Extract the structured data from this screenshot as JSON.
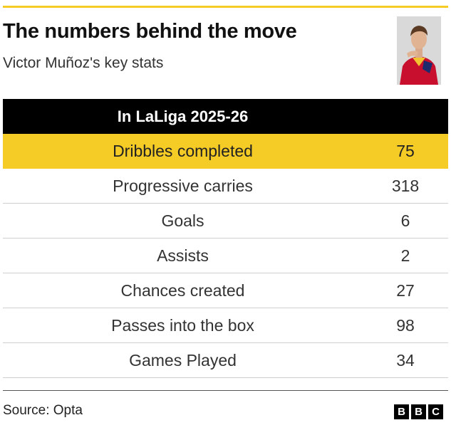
{
  "title": "The numbers behind the move",
  "subtitle": "Victor Muñoz's key stats",
  "table_header": "In LaLiga 2025-26",
  "source": "Source: Opta",
  "brand": {
    "letters": [
      "B",
      "B",
      "C"
    ]
  },
  "colors": {
    "accent": "#f5cb26",
    "header_bg": "#000000"
  },
  "chart_data": {
    "type": "table",
    "title": "The numbers behind the move",
    "subtitle": "Victor Muñoz's key stats",
    "header": "In LaLiga 2025-26",
    "highlighted_row": 0,
    "rows": [
      {
        "label": "Dribbles completed",
        "value": "75"
      },
      {
        "label": "Progressive carries",
        "value": "318"
      },
      {
        "label": "Goals",
        "value": "6"
      },
      {
        "label": "Assists",
        "value": "2"
      },
      {
        "label": "Chances created",
        "value": "27"
      },
      {
        "label": "Passes into the box",
        "value": "98"
      },
      {
        "label": "Games Played",
        "value": "34"
      }
    ]
  }
}
